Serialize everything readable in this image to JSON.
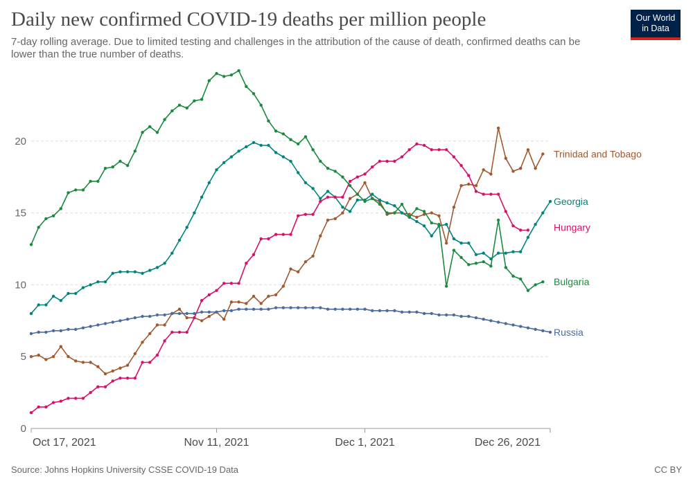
{
  "header": {
    "title": "Daily new confirmed COVID-19 deaths per million people",
    "subtitle": "7-day rolling average. Due to limited testing and challenges in the attribution of the cause of death, confirmed deaths can be lower than the true number of deaths.",
    "logo_line1": "Our World",
    "logo_line2": "in Data"
  },
  "footer": {
    "source": "Source: Johns Hopkins University CSSE COVID-19 Data",
    "license": "CC BY"
  },
  "colors": {
    "logo_bg": "#002147",
    "logo_accent": "#ce261e"
  },
  "chart_data": {
    "type": "line",
    "title": "Daily new confirmed COVID-19 deaths per million people",
    "xlabel": "",
    "ylabel": "",
    "x_start": "Oct 17, 2021",
    "x_day_range": [
      0,
      70
    ],
    "ylim": [
      0,
      25
    ],
    "y_ticks": [
      0,
      5,
      10,
      15,
      20
    ],
    "x_ticks": [
      {
        "day": 0,
        "label": "Oct 17, 2021"
      },
      {
        "day": 25,
        "label": "Nov 11, 2021"
      },
      {
        "day": 45,
        "label": "Dec 1, 2021"
      },
      {
        "day": 70,
        "label": "Dec 26, 2021"
      }
    ],
    "grid": "horizontal-dashed",
    "series": [
      {
        "name": "Trinidad and Tobago",
        "color": "#a2592f",
        "start_day": 0,
        "values": [
          5.0,
          5.1,
          4.8,
          5.0,
          5.7,
          5.0,
          4.7,
          4.6,
          4.6,
          4.3,
          3.8,
          4.0,
          4.2,
          4.4,
          5.2,
          6.0,
          6.6,
          7.2,
          7.2,
          8.0,
          8.3,
          7.7,
          7.7,
          7.5,
          7.8,
          8.1,
          7.6,
          8.8,
          8.8,
          8.7,
          9.2,
          8.7,
          9.2,
          9.3,
          9.9,
          11.1,
          10.9,
          11.6,
          12.0,
          13.4,
          14.5,
          14.6,
          15.0,
          16.0,
          16.3,
          17.1,
          16.0,
          15.8,
          14.9,
          15.0,
          15.0,
          14.9,
          14.7,
          14.9,
          15.0,
          14.8,
          12.9,
          15.4,
          16.9,
          17.0,
          16.9,
          18.0,
          17.7,
          20.9,
          18.8,
          17.9,
          18.1,
          19.4,
          18.1,
          19.1
        ]
      },
      {
        "name": "Georgia",
        "color": "#00847e",
        "start_day": 0,
        "values": [
          8.0,
          8.6,
          8.6,
          9.2,
          8.9,
          9.4,
          9.4,
          9.8,
          10.0,
          10.2,
          10.2,
          10.8,
          10.9,
          10.9,
          10.9,
          10.8,
          11.0,
          11.2,
          11.5,
          12.2,
          13.1,
          14.0,
          15.0,
          16.1,
          17.1,
          18.0,
          18.5,
          18.9,
          19.3,
          19.6,
          19.9,
          19.7,
          19.7,
          19.2,
          18.9,
          18.6,
          17.8,
          17.1,
          16.7,
          16.0,
          16.5,
          16.1,
          15.4,
          15.1,
          15.9,
          15.9,
          16.3,
          15.9,
          15.7,
          15.5,
          15.0,
          14.7,
          14.4,
          14.1,
          13.4,
          14.1,
          14.2,
          13.2,
          12.9,
          12.9,
          12.1,
          12.2,
          11.8,
          12.2,
          12.2,
          12.3,
          12.3,
          13.3,
          14.2,
          15.0,
          15.8
        ]
      },
      {
        "name": "Hungary",
        "color": "#d6106b",
        "start_day": 0,
        "values": [
          1.1,
          1.5,
          1.5,
          1.8,
          1.9,
          2.1,
          2.1,
          2.1,
          2.5,
          2.9,
          2.9,
          3.3,
          3.5,
          3.5,
          3.5,
          4.6,
          4.6,
          5.1,
          6.1,
          6.7,
          6.7,
          6.7,
          7.7,
          8.9,
          9.3,
          9.6,
          10.1,
          10.1,
          10.1,
          11.5,
          12.1,
          13.2,
          13.2,
          13.5,
          13.5,
          13.5,
          14.8,
          14.9,
          14.9,
          15.8,
          16.1,
          16.1,
          16.1,
          17.2,
          17.5,
          17.7,
          18.2,
          18.6,
          18.6,
          18.6,
          18.9,
          19.4,
          19.8,
          19.7,
          19.4,
          19.4,
          19.4,
          18.9,
          18.3,
          17.6,
          16.5,
          16.3,
          16.3,
          16.3,
          15.1,
          14.1,
          13.8,
          13.8
        ]
      },
      {
        "name": "Bulgaria",
        "color": "#1a8a3f",
        "start_day": 0,
        "values": [
          12.8,
          14.0,
          14.6,
          14.8,
          15.3,
          16.4,
          16.6,
          16.6,
          17.2,
          17.2,
          18.1,
          18.2,
          18.6,
          18.3,
          19.3,
          20.6,
          21.0,
          20.6,
          21.5,
          22.1,
          22.5,
          22.3,
          22.8,
          22.9,
          24.2,
          24.7,
          24.5,
          24.6,
          24.9,
          23.8,
          23.3,
          22.5,
          21.4,
          20.7,
          20.5,
          20.1,
          19.8,
          20.3,
          19.4,
          18.6,
          18.1,
          17.9,
          17.5,
          16.9,
          16.3,
          15.8,
          16.0,
          15.6,
          15.0,
          15.0,
          15.6,
          14.7,
          15.3,
          15.1,
          14.3,
          14.2,
          9.9,
          12.4,
          11.9,
          11.4,
          11.5,
          11.6,
          11.3,
          14.5,
          11.2,
          10.6,
          10.4,
          9.6,
          10.0,
          10.2
        ]
      },
      {
        "name": "Russia",
        "color": "#4c6a9c",
        "start_day": 0,
        "values": [
          6.6,
          6.7,
          6.7,
          6.8,
          6.8,
          6.9,
          6.9,
          7.0,
          7.1,
          7.2,
          7.3,
          7.4,
          7.5,
          7.6,
          7.7,
          7.8,
          7.8,
          7.9,
          7.9,
          8.0,
          8.0,
          8.0,
          8.0,
          8.1,
          8.1,
          8.1,
          8.2,
          8.2,
          8.3,
          8.3,
          8.3,
          8.3,
          8.3,
          8.4,
          8.4,
          8.4,
          8.4,
          8.4,
          8.4,
          8.4,
          8.3,
          8.3,
          8.3,
          8.3,
          8.3,
          8.3,
          8.2,
          8.2,
          8.2,
          8.2,
          8.1,
          8.1,
          8.1,
          8.0,
          8.0,
          7.9,
          7.9,
          7.9,
          7.8,
          7.8,
          7.7,
          7.6,
          7.5,
          7.4,
          7.3,
          7.2,
          7.1,
          7.0,
          6.9,
          6.8,
          6.7
        ]
      }
    ]
  }
}
